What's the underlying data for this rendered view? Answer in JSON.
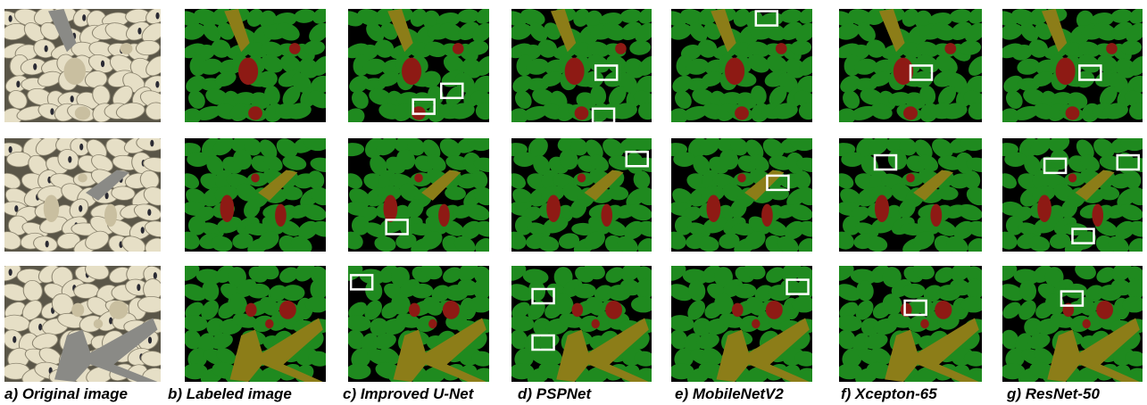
{
  "captions": [
    "a) Original image",
    "b) Labeled image",
    "c) Improved U-Net",
    "d) PSPNet",
    "e) MobileNetV2",
    "f) Xcepton-65",
    "g) ResNet-50"
  ]
}
